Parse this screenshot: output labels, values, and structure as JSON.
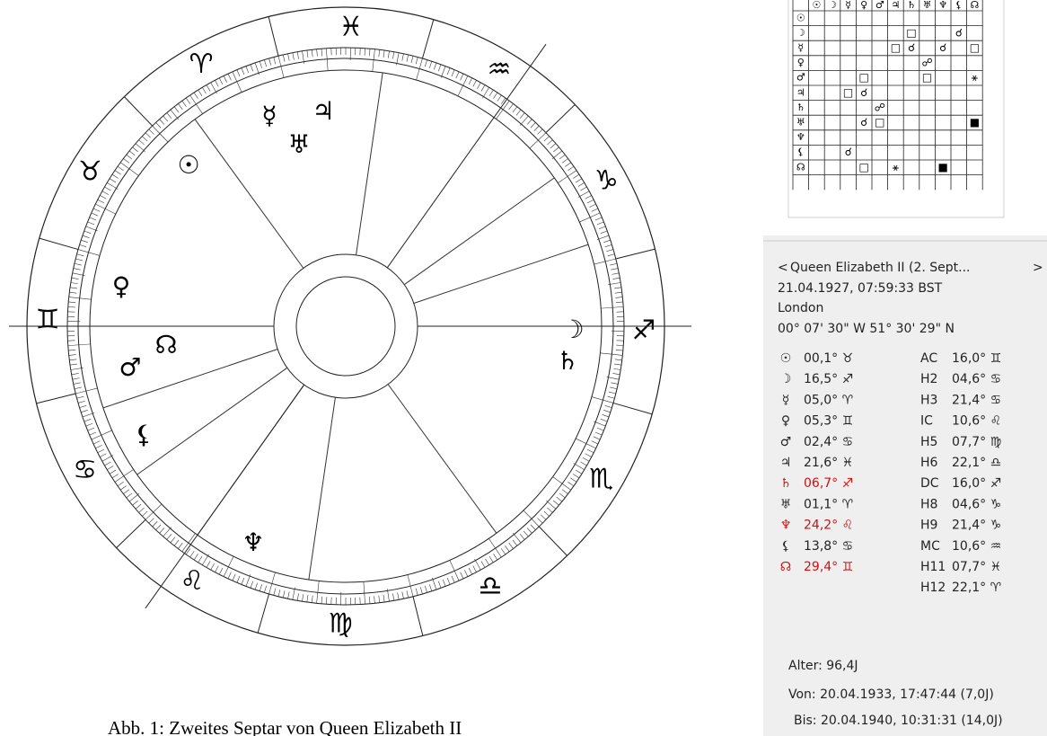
{
  "wheel": {
    "signs": [
      "♈",
      "♉",
      "♊",
      "♋",
      "♌",
      "♍",
      "♎",
      "♏",
      "♐",
      "♑",
      "♒",
      "♓"
    ],
    "planets": [
      "☉",
      "☽",
      "☿",
      "♀",
      "♂",
      "♃",
      "♄",
      "♅",
      "♆",
      "⚸",
      "☊"
    ]
  },
  "aspect_grid": {
    "header": [
      "☉",
      "☽",
      "☿",
      "♀",
      "♂",
      "♃",
      "♄",
      "♅",
      "♆",
      "⚸",
      "☊"
    ],
    "rows": [
      [
        null,
        null,
        null,
        null,
        null,
        null,
        null,
        null,
        null,
        null,
        null
      ],
      [
        null,
        null,
        null,
        null,
        null,
        null,
        "□",
        null,
        null,
        "☌",
        null
      ],
      [
        null,
        null,
        null,
        null,
        null,
        "□",
        "☌",
        null,
        "☌",
        null,
        "□"
      ],
      [
        null,
        null,
        null,
        null,
        null,
        null,
        null,
        "☍",
        null,
        null,
        null
      ],
      [
        null,
        null,
        null,
        "□",
        null,
        null,
        null,
        "□",
        null,
        null,
        "⚹"
      ],
      [
        null,
        null,
        "□",
        "☌",
        null,
        null,
        null,
        null,
        null,
        null,
        null
      ],
      [
        null,
        null,
        null,
        null,
        "☍",
        null,
        null,
        null,
        null,
        null,
        null
      ],
      [
        null,
        null,
        null,
        "☌",
        "□",
        null,
        null,
        null,
        null,
        null,
        "■"
      ],
      [
        null,
        null,
        null,
        null,
        null,
        null,
        null,
        null,
        null,
        null,
        null
      ],
      [
        null,
        null,
        "☌",
        null,
        null,
        null,
        null,
        null,
        null,
        null,
        null
      ],
      [
        null,
        null,
        null,
        "□",
        null,
        "⚹",
        null,
        null,
        "■",
        null,
        null
      ]
    ]
  },
  "panel": {
    "nav_prev": "<",
    "nav_title": "Queen Elizabeth II (2. Sept...",
    "nav_next": ">",
    "datetime": "21.04.1927,  07:59:33 BST",
    "place": "London",
    "coords": "00° 07' 30\" W  51° 30' 29\" N",
    "planets": [
      {
        "glyph": "☉",
        "pos": "00,1° ♉",
        "color": "#222"
      },
      {
        "glyph": "☽",
        "pos": "16,5° ♐",
        "color": "#222"
      },
      {
        "glyph": "☿",
        "pos": "05,0° ♈",
        "color": "#222"
      },
      {
        "glyph": "♀",
        "pos": "05,3° ♊",
        "color": "#222"
      },
      {
        "glyph": "♂",
        "pos": "02,4° ♋",
        "color": "#222"
      },
      {
        "glyph": "♃",
        "pos": "21,6° ♓",
        "color": "#222"
      },
      {
        "glyph": "♄",
        "pos": "06,7° ♐",
        "color": "#d01010"
      },
      {
        "glyph": "♅",
        "pos": "01,1° ♈",
        "color": "#222"
      },
      {
        "glyph": "♆",
        "pos": "24,2° ♌",
        "color": "#d01010"
      },
      {
        "glyph": "⚸",
        "pos": "13,8° ♋",
        "color": "#222"
      },
      {
        "glyph": "☊",
        "pos": "29,4° ♊",
        "color": "#d01010"
      }
    ],
    "houses": [
      {
        "name": "AC",
        "pos": "16,0° ♊"
      },
      {
        "name": "H2",
        "pos": "04,6° ♋"
      },
      {
        "name": "H3",
        "pos": "21,4° ♋"
      },
      {
        "name": "IC",
        "pos": "10,6° ♌"
      },
      {
        "name": "H5",
        "pos": "07,7° ♍"
      },
      {
        "name": "H6",
        "pos": "22,1° ♎"
      },
      {
        "name": "DC",
        "pos": "16,0° ♐"
      },
      {
        "name": "H8",
        "pos": "04,6° ♑"
      },
      {
        "name": "H9",
        "pos": "21,4° ♑"
      },
      {
        "name": "MC",
        "pos": "10,6° ♒"
      },
      {
        "name": "H11",
        "pos": "07,7° ♓"
      },
      {
        "name": "H12",
        "pos": "22,1° ♈"
      }
    ],
    "age": "Alter: 96,4J",
    "from": "Von: 20.04.1933,  17:47:44 (7,0J)",
    "to": "Bis: 20.04.1940,  10:31:31 (14,0J)"
  },
  "caption": "Abb. 1: Zweites Septar von Queen Elizabeth II"
}
